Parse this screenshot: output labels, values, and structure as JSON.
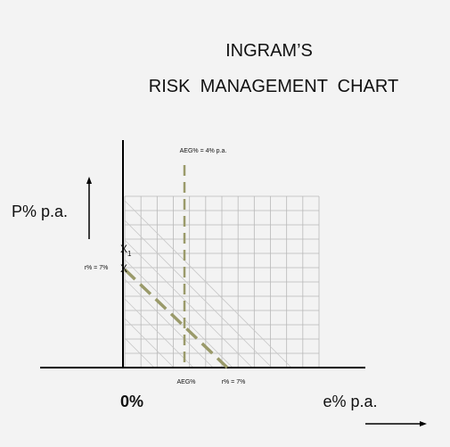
{
  "header": {
    "title_line1": "INGRAM’S",
    "title_line2": "RISK  MANAGEMENT  CHART"
  },
  "labels": {
    "aeg_top": "AEG% = 4% p.a.",
    "y_axis": "P% p.a.",
    "x1_letter": "X",
    "x1_sub": "1",
    "r_left": "r% = 7%",
    "x_mark": "X",
    "origin": "0%",
    "aeg_bottom": "AEG%",
    "r_bottom": "r% = 7%",
    "x_axis": "e% p.a."
  }
}
